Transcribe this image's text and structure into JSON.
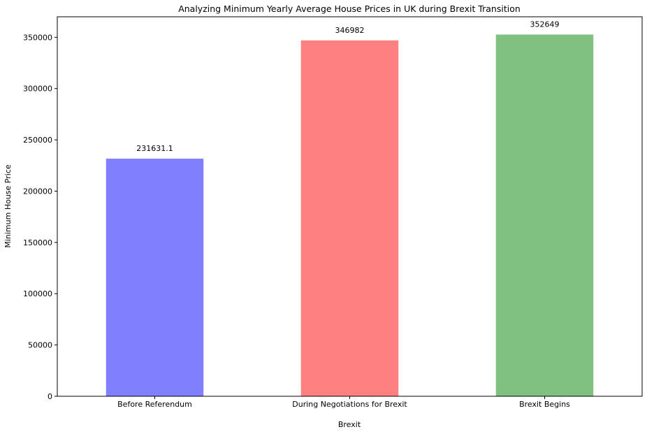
{
  "chart_data": {
    "type": "bar",
    "title": "Analyzing Minimum Yearly Average House Prices in UK during Brexit Transition",
    "xlabel": "Brexit",
    "ylabel": "Minimum House Price",
    "categories": [
      "Before Referendum",
      "During Negotiations for Brexit",
      "Brexit Begins"
    ],
    "values": [
      231631.1,
      346982,
      352649
    ],
    "value_labels": [
      "231631.1",
      "346982",
      "352649"
    ],
    "colors": [
      "#8080ff",
      "#ff8080",
      "#80c080"
    ],
    "ylim": [
      0,
      370000
    ],
    "yticks": [
      0,
      50000,
      100000,
      150000,
      200000,
      250000,
      300000,
      350000
    ],
    "ytick_labels": [
      "0",
      "50000",
      "100000",
      "150000",
      "200000",
      "250000",
      "300000",
      "350000"
    ],
    "grid": false
  }
}
